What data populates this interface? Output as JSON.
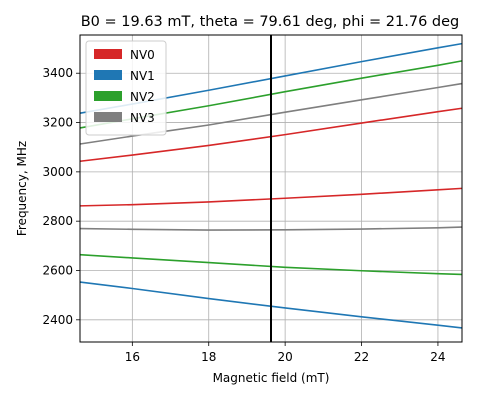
{
  "chart_data": {
    "type": "line",
    "title": "B0 = 19.63 mT, theta = 79.61 deg, phi = 21.76 deg",
    "xlabel": "Magnetic field (mT)",
    "ylabel": "Frequency, MHz",
    "xlim": [
      14.63,
      24.63
    ],
    "ylim": [
      2310,
      3555
    ],
    "xticks": [
      16,
      18,
      20,
      22,
      24
    ],
    "yticks": [
      2400,
      2600,
      2800,
      3000,
      3200,
      3400
    ],
    "grid": true,
    "legend_position": "top-left",
    "marker_line": {
      "x": 19.63,
      "color": "#000000"
    },
    "x": [
      14.63,
      16,
      18,
      20,
      22,
      24,
      24.63
    ],
    "series": [
      {
        "name": "NV0",
        "color": "#d62728",
        "values": [
          3043,
          3068,
          3107,
          3151,
          3198,
          3244,
          3258
        ]
      },
      {
        "name": "NV0",
        "color": "#d62728",
        "values": [
          2862,
          2867,
          2878,
          2893,
          2909,
          2927,
          2933
        ],
        "legend": false
      },
      {
        "name": "NV1",
        "color": "#1f77b4",
        "values": [
          3238,
          3275,
          3331,
          3389,
          3447,
          3503,
          3520
        ]
      },
      {
        "name": "NV1",
        "color": "#1f77b4",
        "values": [
          2553,
          2527,
          2486,
          2448,
          2412,
          2378,
          2367
        ],
        "legend": false
      },
      {
        "name": "NV2",
        "color": "#2ca02c",
        "values": [
          3178,
          3215,
          3268,
          3325,
          3380,
          3432,
          3450
        ]
      },
      {
        "name": "NV2",
        "color": "#2ca02c",
        "values": [
          2664,
          2651,
          2632,
          2613,
          2599,
          2587,
          2584
        ],
        "legend": false
      },
      {
        "name": "NV3",
        "color": "#7f7f7f",
        "values": [
          3113,
          3145,
          3190,
          3242,
          3292,
          3342,
          3358
        ]
      },
      {
        "name": "NV3",
        "color": "#7f7f7f",
        "values": [
          2770,
          2767,
          2764,
          2765,
          2768,
          2773,
          2776
        ],
        "legend": false
      }
    ]
  }
}
